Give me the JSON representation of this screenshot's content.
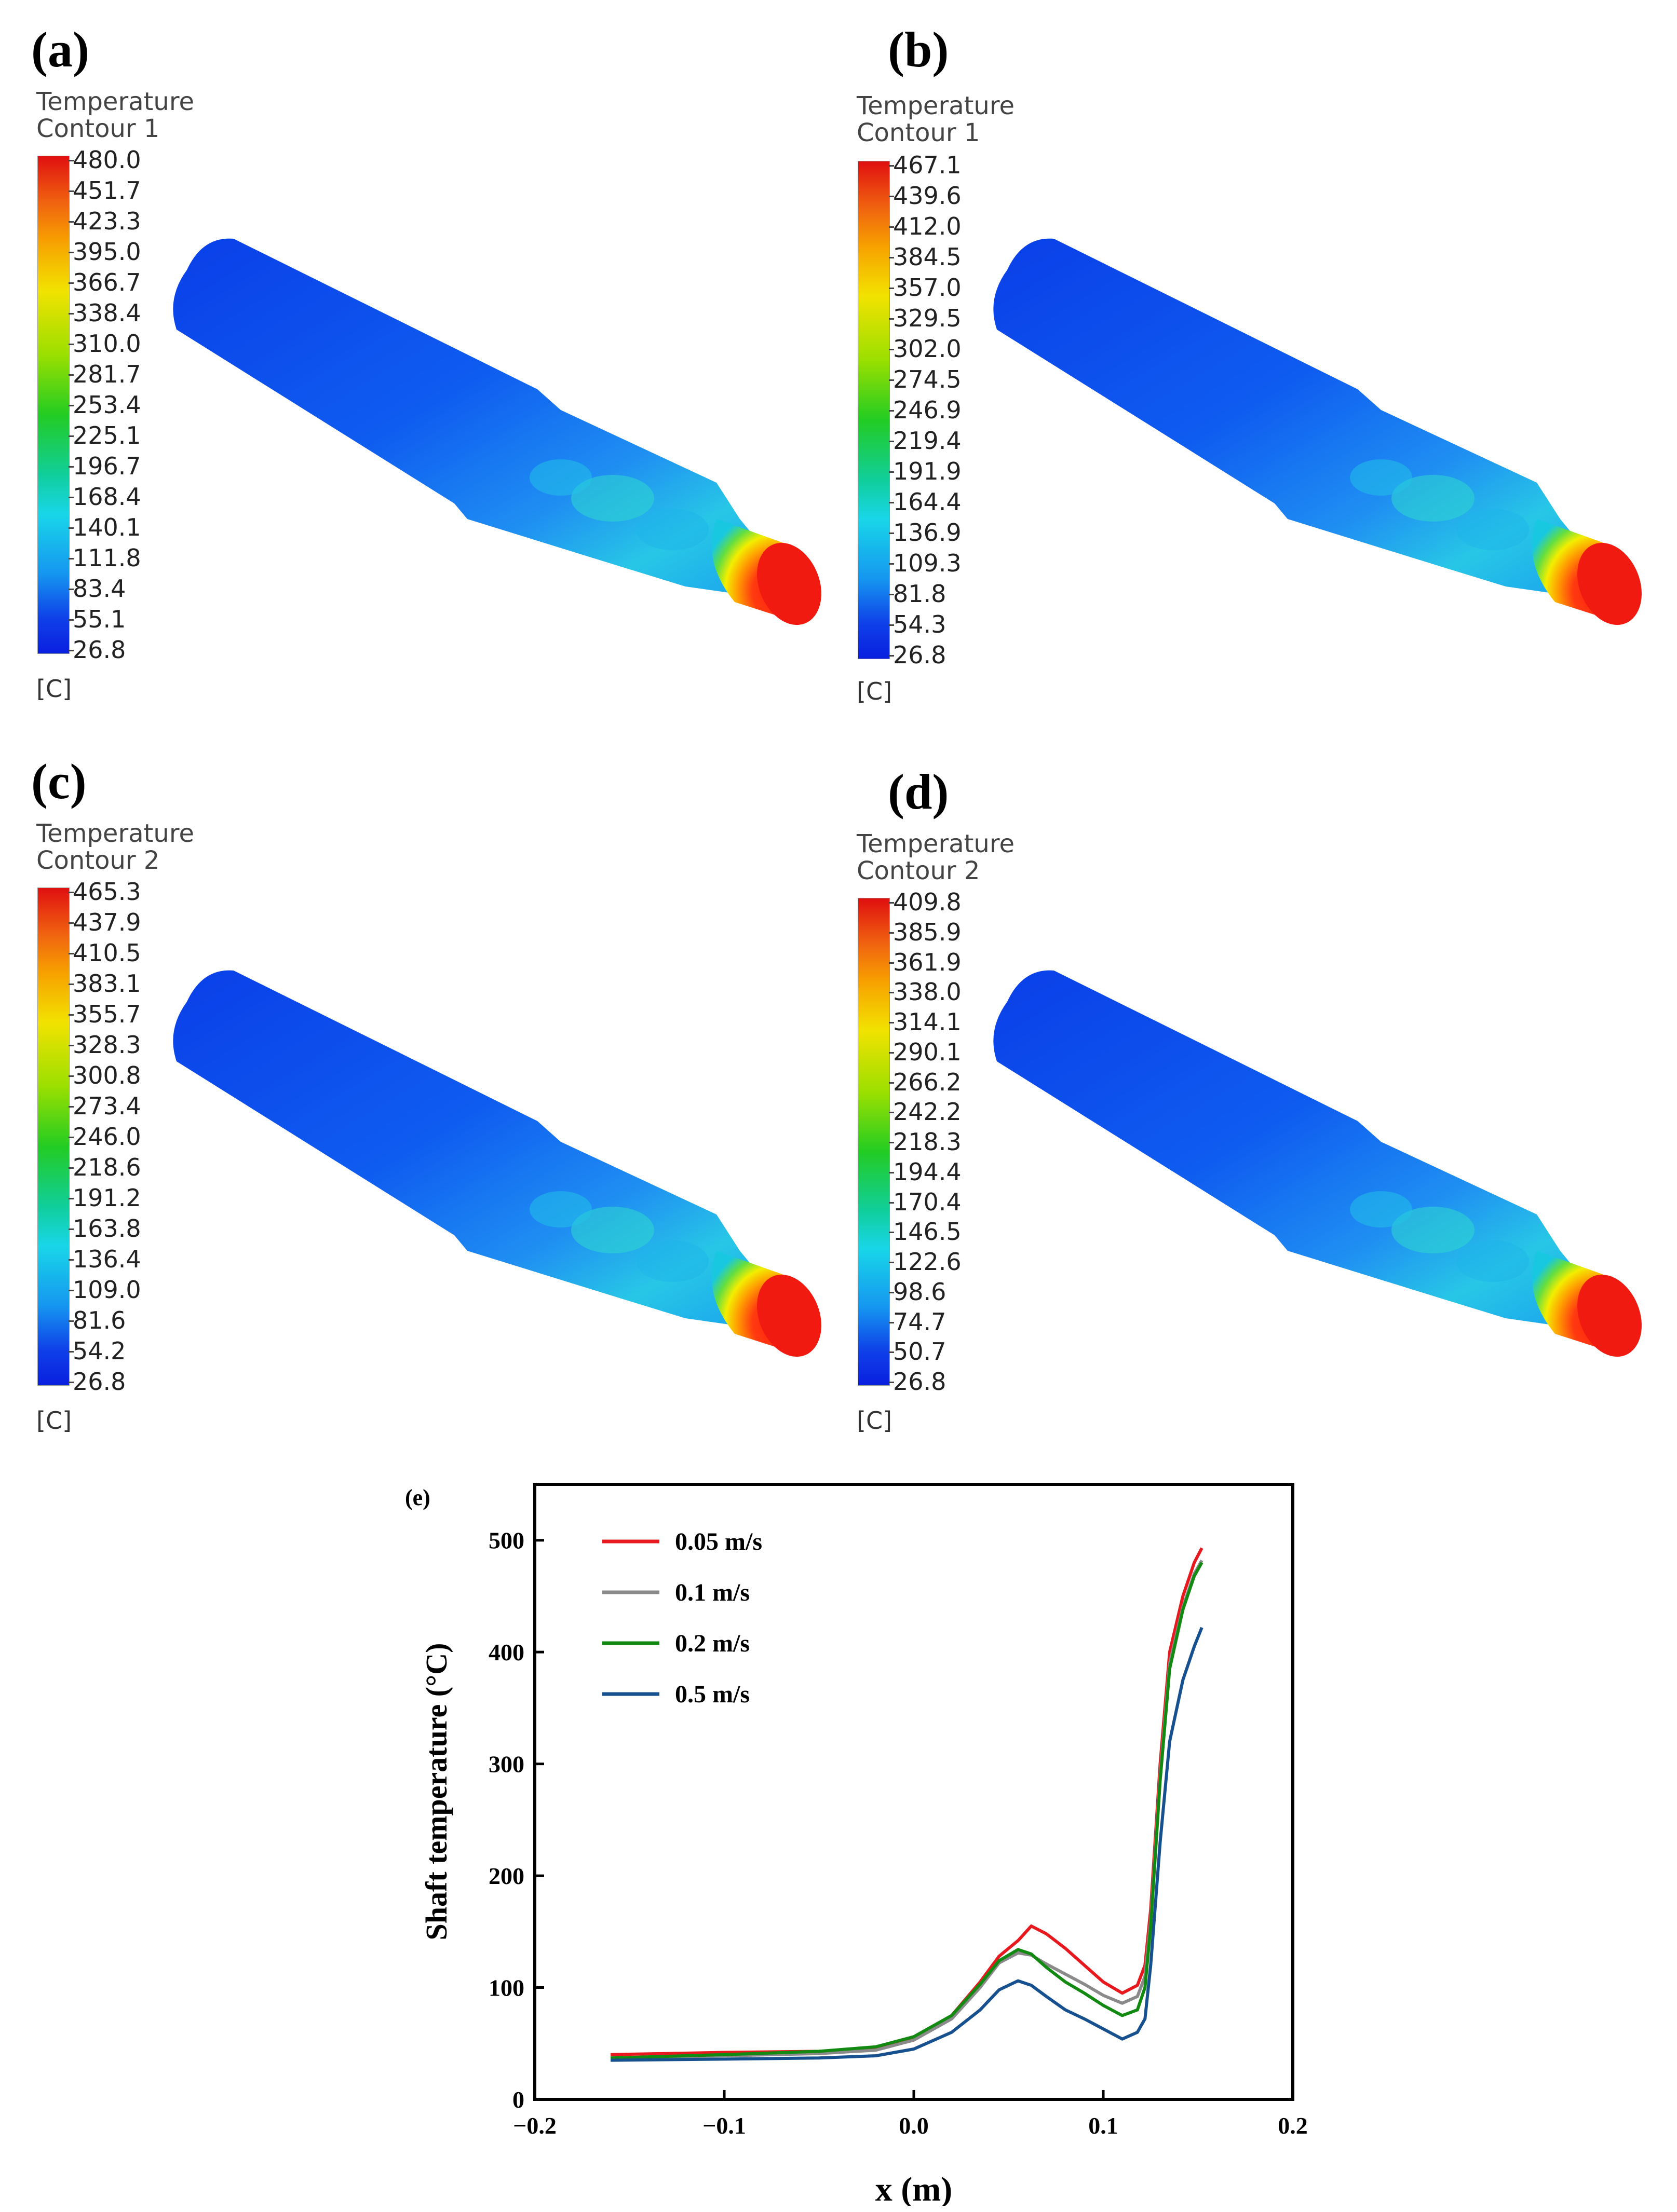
{
  "panels": [
    {
      "letter": "(a)",
      "title": "Temperature",
      "subtitle": "Contour 1",
      "unit": "[C]",
      "ticks": [
        "480.0",
        "451.7",
        "423.3",
        "395.0",
        "366.7",
        "338.4",
        "310.0",
        "281.7",
        "253.4",
        "225.1",
        "196.7",
        "168.4",
        "140.1",
        "111.8",
        "83.4",
        "55.1",
        "26.8"
      ]
    },
    {
      "letter": "(b)",
      "title": "Temperature",
      "subtitle": "Contour 1",
      "unit": "[C]",
      "ticks": [
        "467.1",
        "439.6",
        "412.0",
        "384.5",
        "357.0",
        "329.5",
        "302.0",
        "274.5",
        "246.9",
        "219.4",
        "191.9",
        "164.4",
        "136.9",
        "109.3",
        "81.8",
        "54.3",
        "26.8"
      ]
    },
    {
      "letter": "(c)",
      "title": "Temperature",
      "subtitle": "Contour 2",
      "unit": "[C]",
      "ticks": [
        "465.3",
        "437.9",
        "410.5",
        "383.1",
        "355.7",
        "328.3",
        "300.8",
        "273.4",
        "246.0",
        "218.6",
        "191.2",
        "163.8",
        "136.4",
        "109.0",
        "81.6",
        "54.2",
        "26.8"
      ]
    },
    {
      "letter": "(d)",
      "title": "Temperature",
      "subtitle": "Contour 2",
      "unit": "[C]",
      "ticks": [
        "409.8",
        "385.9",
        "361.9",
        "338.0",
        "314.1",
        "290.1",
        "266.2",
        "242.2",
        "218.3",
        "194.4",
        "170.4",
        "146.5",
        "122.6",
        "98.6",
        "74.7",
        "50.7",
        "26.8"
      ]
    }
  ],
  "chart_data": {
    "type": "line",
    "panel_label": "(e)",
    "title": "",
    "xlabel": "x (m)",
    "ylabel": "Shaft temperature (°C)",
    "xlim": [
      -0.2,
      0.2
    ],
    "ylim": [
      0,
      550
    ],
    "x_ticks": [
      -0.2,
      -0.1,
      0.0,
      0.1,
      0.2
    ],
    "x_tick_labels": [
      "−0.2",
      "−0.1",
      "0.0",
      "0.1",
      "0.2"
    ],
    "y_ticks": [
      0,
      100,
      200,
      300,
      400,
      500
    ],
    "y_tick_labels": [
      "0",
      "100",
      "200",
      "300",
      "400",
      "500"
    ],
    "grid": false,
    "legend_position": "top-left",
    "series": [
      {
        "name": "0.05 m/s",
        "color": "#e8191e",
        "points": [
          [
            -0.16,
            40
          ],
          [
            -0.1,
            42
          ],
          [
            -0.05,
            43
          ],
          [
            -0.02,
            45
          ],
          [
            0.0,
            55
          ],
          [
            0.02,
            75
          ],
          [
            0.035,
            105
          ],
          [
            0.045,
            128
          ],
          [
            0.055,
            142
          ],
          [
            0.062,
            155
          ],
          [
            0.07,
            148
          ],
          [
            0.08,
            135
          ],
          [
            0.09,
            120
          ],
          [
            0.1,
            105
          ],
          [
            0.11,
            95
          ],
          [
            0.118,
            102
          ],
          [
            0.122,
            120
          ],
          [
            0.125,
            170
          ],
          [
            0.13,
            300
          ],
          [
            0.135,
            400
          ],
          [
            0.142,
            450
          ],
          [
            0.148,
            480
          ],
          [
            0.152,
            493
          ]
        ]
      },
      {
        "name": "0.1 m/s",
        "color": "#8a8a8a",
        "points": [
          [
            -0.16,
            37
          ],
          [
            -0.1,
            39
          ],
          [
            -0.05,
            41
          ],
          [
            -0.02,
            44
          ],
          [
            0.0,
            53
          ],
          [
            0.02,
            72
          ],
          [
            0.035,
            100
          ],
          [
            0.045,
            122
          ],
          [
            0.055,
            131
          ],
          [
            0.062,
            129
          ],
          [
            0.07,
            121
          ],
          [
            0.08,
            112
          ],
          [
            0.09,
            103
          ],
          [
            0.1,
            93
          ],
          [
            0.11,
            86
          ],
          [
            0.118,
            92
          ],
          [
            0.122,
            110
          ],
          [
            0.125,
            160
          ],
          [
            0.13,
            290
          ],
          [
            0.135,
            390
          ],
          [
            0.142,
            440
          ],
          [
            0.148,
            470
          ],
          [
            0.152,
            482
          ]
        ]
      },
      {
        "name": "0.2 m/s",
        "color": "#128a12",
        "points": [
          [
            -0.16,
            37
          ],
          [
            -0.1,
            40
          ],
          [
            -0.05,
            43
          ],
          [
            -0.02,
            47
          ],
          [
            0.0,
            56
          ],
          [
            0.02,
            75
          ],
          [
            0.035,
            103
          ],
          [
            0.045,
            124
          ],
          [
            0.055,
            134
          ],
          [
            0.062,
            130
          ],
          [
            0.07,
            118
          ],
          [
            0.08,
            105
          ],
          [
            0.09,
            95
          ],
          [
            0.1,
            84
          ],
          [
            0.11,
            75
          ],
          [
            0.118,
            80
          ],
          [
            0.122,
            100
          ],
          [
            0.125,
            155
          ],
          [
            0.13,
            285
          ],
          [
            0.135,
            385
          ],
          [
            0.142,
            438
          ],
          [
            0.148,
            468
          ],
          [
            0.152,
            480
          ]
        ]
      },
      {
        "name": "0.5 m/s",
        "color": "#17508f",
        "points": [
          [
            -0.16,
            35
          ],
          [
            -0.1,
            36
          ],
          [
            -0.05,
            37
          ],
          [
            -0.02,
            39
          ],
          [
            0.0,
            45
          ],
          [
            0.02,
            60
          ],
          [
            0.035,
            80
          ],
          [
            0.045,
            98
          ],
          [
            0.055,
            106
          ],
          [
            0.062,
            102
          ],
          [
            0.07,
            92
          ],
          [
            0.08,
            80
          ],
          [
            0.09,
            72
          ],
          [
            0.1,
            63
          ],
          [
            0.11,
            54
          ],
          [
            0.118,
            60
          ],
          [
            0.122,
            72
          ],
          [
            0.125,
            120
          ],
          [
            0.13,
            230
          ],
          [
            0.135,
            320
          ],
          [
            0.142,
            375
          ],
          [
            0.148,
            405
          ],
          [
            0.152,
            422
          ]
        ]
      }
    ]
  }
}
